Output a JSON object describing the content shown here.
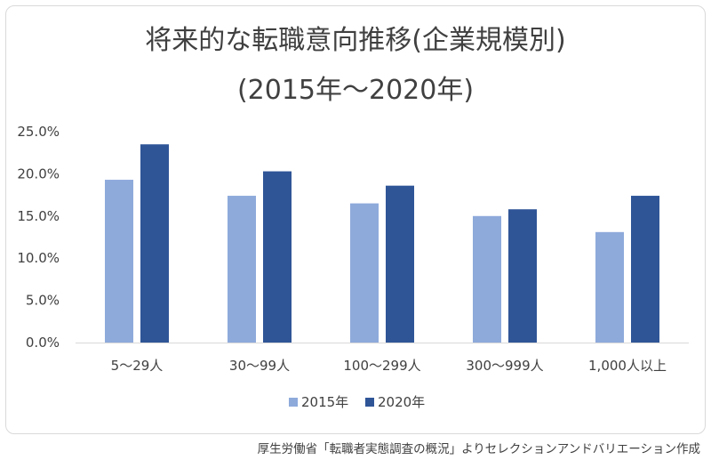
{
  "chart_data": {
    "type": "bar",
    "title": "将来的な転職意向推移(企業規模別)",
    "subtitle": "(2015年～2020年)",
    "categories": [
      "5～29人",
      "30～99人",
      "100～299人",
      "300～999人",
      "1,000人以上"
    ],
    "series": [
      {
        "name": "2015年",
        "values": [
          19.3,
          17.4,
          16.5,
          15.0,
          13.1
        ],
        "color": "#8eaadb"
      },
      {
        "name": "2020年",
        "values": [
          23.5,
          20.3,
          18.6,
          15.8,
          17.4
        ],
        "color": "#2f5597"
      }
    ],
    "y_ticks": [
      "0.0%",
      "5.0%",
      "10.0%",
      "15.0%",
      "20.0%",
      "25.0%"
    ],
    "ylim": [
      0,
      25
    ],
    "grid": false,
    "legend_position": "bottom"
  },
  "source_note": "厚生労働省「転職者実態調査の概況」よりセレクションアンドバリエーション作成"
}
